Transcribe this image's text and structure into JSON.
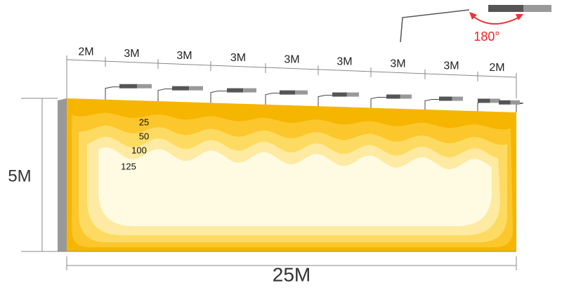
{
  "spacing_labels": [
    "2M",
    "3M",
    "3M",
    "3M",
    "3M",
    "3M",
    "3M",
    "3M",
    "2M"
  ],
  "height_label": "5M",
  "length_label": "25M",
  "rotation_label": "180°",
  "contour_labels": [
    "25",
    "50",
    "100",
    "125"
  ]
}
